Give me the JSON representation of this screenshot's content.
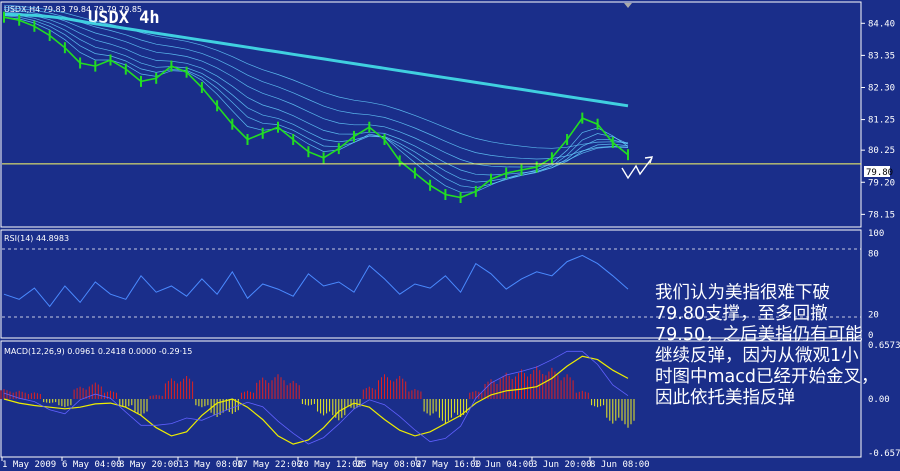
{
  "chart_data": [
    {
      "type": "line",
      "panel": "price",
      "title": "USDX 4h",
      "header": "USDX,H4  79.83 79.84 79.79 79.85",
      "y_ticks": [
        "84.40",
        "83.35",
        "82.30",
        "81.25",
        "80.25",
        "79.20",
        "78.15"
      ],
      "current_price_label": "79.80",
      "ylim": [
        77.9,
        84.9
      ],
      "series": [
        {
          "values": [
            84.6,
            84.5,
            84.3,
            84.0,
            83.6,
            83.1,
            83.0,
            83.2,
            82.9,
            82.5,
            82.6,
            83.0,
            82.8,
            82.3,
            81.7,
            81.1,
            80.6,
            80.8,
            81.0,
            80.6,
            80.2,
            80.0,
            80.3,
            80.7,
            81.0,
            80.6,
            79.9,
            79.5,
            79.1,
            78.8,
            78.7,
            78.9,
            79.3,
            79.5,
            79.6,
            79.7,
            80.0,
            80.6,
            81.3,
            81.1,
            80.5,
            80.1
          ]
        }
      ],
      "ema_long_end": 81.55,
      "horizontal_line": 79.8,
      "x_ticks": [
        "1 May 2009",
        "6 May 04:00",
        "8 May 20:00",
        "13 May 08:00",
        "17 May 22:00",
        "20 May 12:00",
        "25 May 08:00",
        "27 May 16:00",
        "1 Jun 04:00",
        "3 Jun 20:00",
        "8 Jun 08:00"
      ]
    },
    {
      "type": "line",
      "panel": "rsi",
      "header": "RSI(14) 44.8983",
      "y_ticks": [
        "100",
        "80",
        "20",
        "0"
      ],
      "ylim": [
        0,
        100
      ],
      "series": [
        {
          "values": [
            40,
            35,
            46,
            28,
            48,
            32,
            52,
            40,
            35,
            58,
            42,
            48,
            38,
            55,
            40,
            62,
            36,
            50,
            45,
            38,
            60,
            48,
            52,
            42,
            68,
            55,
            40,
            50,
            46,
            58,
            42,
            70,
            60,
            45,
            55,
            62,
            58,
            72,
            78,
            70,
            58,
            45
          ]
        }
      ]
    },
    {
      "type": "bar",
      "panel": "macd",
      "header": "MACD(12,26,9) 0.0961 0.2418 0.0000 -0.29·15",
      "y_ticks": [
        "0.6573",
        "0.00",
        "-0.6578"
      ],
      "ylim": [
        -0.6578,
        0.6573
      ],
      "series": [
        {
          "name": "hist",
          "values": [
            0.12,
            0.1,
            0.08,
            -0.05,
            -0.1,
            0.15,
            0.2,
            0.1,
            -0.1,
            -0.2,
            0.05,
            0.25,
            0.28,
            -0.1,
            -0.22,
            -0.18,
            0.1,
            0.26,
            0.3,
            0.22,
            -0.08,
            -0.2,
            -0.26,
            -0.12,
            0.15,
            0.3,
            0.28,
            0.12,
            -0.2,
            -0.3,
            -0.22,
            0.1,
            0.24,
            0.32,
            0.36,
            0.4,
            0.38,
            0.3,
            0.1,
            -0.1,
            -0.3,
            -0.35
          ]
        },
        {
          "name": "signal",
          "values": [
            0.0,
            -0.05,
            -0.08,
            -0.1,
            -0.12,
            -0.1,
            -0.06,
            -0.05,
            -0.1,
            -0.2,
            -0.35,
            -0.45,
            -0.4,
            -0.2,
            -0.05,
            0.0,
            -0.1,
            -0.25,
            -0.45,
            -0.55,
            -0.5,
            -0.35,
            -0.15,
            -0.05,
            -0.1,
            -0.25,
            -0.38,
            -0.45,
            -0.4,
            -0.3,
            -0.2,
            -0.05,
            0.05,
            0.1,
            0.12,
            0.15,
            0.25,
            0.4,
            0.52,
            0.48,
            0.35,
            0.25
          ]
        }
      ]
    }
  ],
  "annotation": {
    "lines": [
      "我们认为美指很难下破",
      "79.80支撑，至多回撤",
      "79.50，之后美指仍有可能",
      "继续反弹，因为从微观1小",
      "时图中macd已经开始金叉，",
      "因此依托美指反弹"
    ]
  },
  "colors": {
    "background": "#1a2e8a",
    "frame": "#ffffff",
    "price_line": "#22dd22",
    "ema": "#66d0ff",
    "ema_long": "#40d0e0",
    "rsi": "#4a8aff",
    "macd_up": "#dd2222",
    "macd_down": "#eeee22",
    "signal": "#eeee00"
  }
}
